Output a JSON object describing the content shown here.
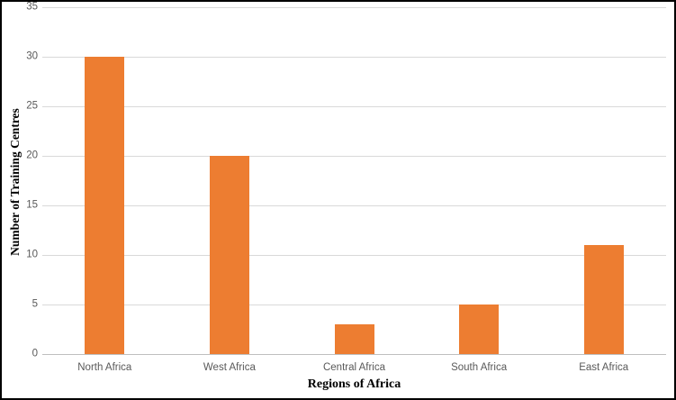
{
  "chart_data": {
    "type": "bar",
    "categories": [
      "North Africa",
      "West Africa",
      "Central Africa",
      "South Africa",
      "East Africa"
    ],
    "values": [
      30,
      20,
      3,
      5,
      11
    ],
    "title": "",
    "xlabel": "Regions of Africa",
    "ylabel": "Number of Training Centres",
    "ylim": [
      0,
      35
    ],
    "yticks": [
      0,
      5,
      10,
      15,
      20,
      25,
      30,
      35
    ],
    "grid": true,
    "legend": "none",
    "bar_color": "#ED7D31",
    "gridline_color": "#D9D9D9",
    "axis_line_color": "#BFBFBF",
    "tick_label_color": "#595959"
  }
}
